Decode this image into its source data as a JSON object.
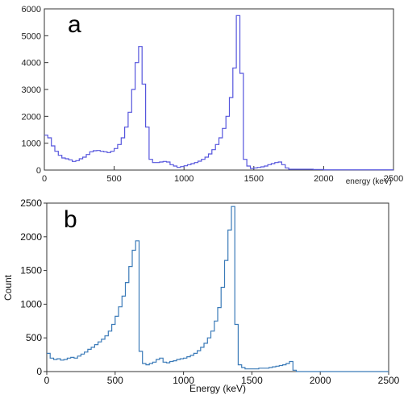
{
  "chart_data": [
    {
      "type": "line",
      "panel_label": "a",
      "xlabel": "energy (keV)",
      "ylabel": "",
      "xlim": [
        0,
        2500
      ],
      "ylim": [
        0,
        6000
      ],
      "xticks": [
        0,
        500,
        1000,
        1500,
        2000,
        2500
      ],
      "yticks": [
        0,
        1000,
        2000,
        3000,
        4000,
        5000,
        6000
      ],
      "step": true,
      "grid": false,
      "color": "#5555dd",
      "x": [
        0,
        25,
        50,
        75,
        100,
        125,
        150,
        175,
        200,
        225,
        250,
        275,
        300,
        325,
        350,
        375,
        400,
        425,
        450,
        475,
        500,
        525,
        550,
        575,
        600,
        625,
        650,
        675,
        700,
        725,
        750,
        775,
        800,
        825,
        850,
        875,
        900,
        925,
        950,
        975,
        1000,
        1025,
        1050,
        1075,
        1100,
        1125,
        1150,
        1175,
        1200,
        1225,
        1250,
        1275,
        1300,
        1325,
        1350,
        1375,
        1400,
        1425,
        1450,
        1475,
        1500,
        1525,
        1550,
        1575,
        1600,
        1625,
        1650,
        1675,
        1700,
        1725,
        1750,
        1775,
        1800,
        1825,
        1850,
        1875,
        1900,
        1925,
        1950,
        1975,
        2000,
        2050,
        2100,
        2150,
        2200,
        2250,
        2300,
        2350,
        2400,
        2450,
        2500
      ],
      "y": [
        1300,
        1200,
        900,
        700,
        550,
        450,
        420,
        380,
        320,
        350,
        420,
        480,
        580,
        680,
        720,
        730,
        700,
        680,
        650,
        700,
        800,
        950,
        1200,
        1600,
        2150,
        3000,
        4000,
        4600,
        3200,
        1600,
        400,
        280,
        280,
        300,
        320,
        300,
        200,
        150,
        100,
        130,
        160,
        200,
        240,
        280,
        330,
        400,
        480,
        600,
        760,
        950,
        1200,
        1550,
        2000,
        2700,
        3800,
        5750,
        3600,
        400,
        150,
        60,
        80,
        100,
        120,
        150,
        200,
        240,
        280,
        300,
        200,
        80,
        30,
        30,
        30,
        30,
        30,
        30,
        30,
        20,
        20,
        20,
        10,
        10,
        10,
        10,
        10,
        10,
        10,
        10,
        10,
        10,
        10
      ]
    },
    {
      "type": "line",
      "panel_label": "b",
      "xlabel": "Energy (keV)",
      "ylabel": "Count",
      "xlim": [
        0,
        2500
      ],
      "ylim": [
        0,
        2500
      ],
      "xticks": [
        0,
        500,
        1000,
        1500,
        2000,
        2500
      ],
      "yticks": [
        0,
        500,
        1000,
        1500,
        2000,
        2500
      ],
      "step": true,
      "grid": false,
      "color": "#3a7ab8",
      "x": [
        0,
        25,
        50,
        75,
        100,
        125,
        150,
        175,
        200,
        225,
        250,
        275,
        300,
        325,
        350,
        375,
        400,
        425,
        450,
        475,
        500,
        525,
        550,
        575,
        600,
        625,
        650,
        675,
        700,
        725,
        750,
        775,
        800,
        825,
        850,
        875,
        900,
        925,
        950,
        975,
        1000,
        1025,
        1050,
        1075,
        1100,
        1125,
        1150,
        1175,
        1200,
        1225,
        1250,
        1275,
        1300,
        1325,
        1350,
        1375,
        1400,
        1425,
        1450,
        1475,
        1500,
        1525,
        1550,
        1575,
        1600,
        1625,
        1650,
        1675,
        1700,
        1725,
        1750,
        1775,
        1800,
        1825,
        1850,
        1875,
        1900,
        1925,
        1950,
        1975,
        2000,
        2050,
        2100,
        2150,
        2200,
        2250,
        2300,
        2350,
        2400,
        2450,
        2500
      ],
      "y": [
        270,
        200,
        180,
        190,
        170,
        180,
        200,
        210,
        200,
        230,
        260,
        290,
        330,
        360,
        400,
        440,
        480,
        530,
        600,
        700,
        820,
        960,
        1120,
        1320,
        1560,
        1800,
        1940,
        300,
        120,
        100,
        120,
        140,
        180,
        200,
        140,
        130,
        150,
        160,
        180,
        190,
        200,
        220,
        240,
        270,
        310,
        360,
        420,
        500,
        600,
        750,
        950,
        1250,
        1650,
        2100,
        2450,
        700,
        100,
        60,
        40,
        40,
        40,
        40,
        50,
        50,
        50,
        60,
        70,
        80,
        90,
        100,
        120,
        150,
        20,
        0,
        0,
        0,
        0,
        0,
        0,
        0,
        0,
        0,
        0,
        0,
        0,
        0,
        0,
        0,
        0,
        0,
        0
      ]
    }
  ]
}
